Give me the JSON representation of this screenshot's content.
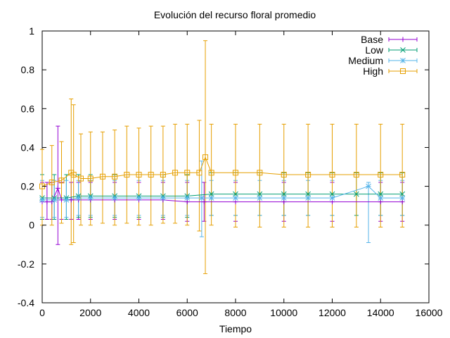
{
  "chart_data": {
    "type": "line",
    "title": "Evolución del recurso floral promedio",
    "xlabel": "Tiempo",
    "ylabel": "",
    "xlim": [
      0,
      16000
    ],
    "ylim": [
      -0.4,
      1
    ],
    "grid": false,
    "legend_position": "top-right",
    "x_ticks": [
      0,
      2000,
      4000,
      6000,
      8000,
      10000,
      12000,
      14000,
      16000
    ],
    "x_tick_labels": [
      "0",
      "2000",
      "4000",
      "6000",
      "8000",
      "10000",
      "12000",
      "14000",
      "16000"
    ],
    "y_ticks": [
      -0.4,
      -0.2,
      0,
      0.2,
      0.4,
      0.6,
      0.8,
      1
    ],
    "y_tick_labels": [
      "-0.4",
      "-0.2",
      "0",
      "0.2",
      "0.4",
      "0.6",
      "0.8",
      "1"
    ],
    "series": [
      {
        "name": "Base",
        "color": "#9400d3",
        "marker": "plus",
        "x": [
          0,
          200,
          400,
          650,
          800,
          1200,
          1500,
          2000,
          3000,
          4000,
          5000,
          6000,
          6700,
          8000,
          10000,
          12000,
          14000,
          14900
        ],
        "y": [
          0.12,
          0.12,
          0.12,
          0.19,
          0.13,
          0.13,
          0.13,
          0.13,
          0.13,
          0.13,
          0.13,
          0.12,
          0.12,
          0.12,
          0.12,
          0.12,
          0.12,
          0.12
        ],
        "err_low": [
          0.03,
          0.03,
          0.03,
          -0.1,
          0.03,
          0.03,
          0.03,
          0.03,
          0.03,
          0.03,
          0.03,
          0.02,
          0.02,
          0.02,
          0.02,
          0.02,
          0.02,
          0.02
        ],
        "err_high": [
          0.22,
          0.22,
          0.22,
          0.51,
          0.22,
          0.22,
          0.22,
          0.22,
          0.22,
          0.22,
          0.22,
          0.22,
          0.22,
          0.22,
          0.22,
          0.22,
          0.22,
          0.22
        ]
      },
      {
        "name": "Low",
        "color": "#009e73",
        "marker": "cross",
        "x": [
          0,
          500,
          1000,
          1500,
          2000,
          3000,
          4000,
          5000,
          6000,
          7000,
          8000,
          9000,
          10000,
          11000,
          12000,
          13000,
          14000,
          14900
        ],
        "y": [
          0.14,
          0.14,
          0.14,
          0.15,
          0.15,
          0.15,
          0.15,
          0.15,
          0.15,
          0.16,
          0.16,
          0.16,
          0.16,
          0.16,
          0.16,
          0.16,
          0.16,
          0.16
        ],
        "err_low": [
          0.03,
          0.03,
          0.03,
          0.04,
          0.04,
          0.04,
          0.04,
          0.04,
          0.04,
          0.05,
          0.05,
          0.05,
          0.05,
          0.05,
          0.05,
          0.05,
          0.05,
          0.05
        ],
        "err_high": [
          0.26,
          0.26,
          0.26,
          0.26,
          0.26,
          0.26,
          0.26,
          0.26,
          0.26,
          0.27,
          0.27,
          0.27,
          0.27,
          0.27,
          0.27,
          0.27,
          0.27,
          0.27
        ]
      },
      {
        "name": "Medium",
        "color": "#56b4e9",
        "marker": "star",
        "x": [
          0,
          500,
          1000,
          1500,
          2000,
          3000,
          4000,
          5000,
          6000,
          6600,
          7000,
          8000,
          9000,
          10000,
          11000,
          12000,
          13500,
          14000,
          14900
        ],
        "y": [
          0.13,
          0.13,
          0.13,
          0.14,
          0.14,
          0.14,
          0.14,
          0.14,
          0.14,
          0.14,
          0.14,
          0.14,
          0.14,
          0.14,
          0.14,
          0.14,
          0.2,
          0.14,
          0.14
        ],
        "err_low": [
          0.04,
          0.04,
          0.04,
          0.05,
          0.05,
          0.05,
          0.05,
          0.05,
          0.05,
          -0.06,
          0.05,
          0.05,
          0.05,
          0.05,
          0.05,
          0.05,
          -0.09,
          0.05,
          0.05
        ],
        "err_high": [
          0.23,
          0.23,
          0.23,
          0.23,
          0.23,
          0.23,
          0.23,
          0.23,
          0.23,
          0.33,
          0.23,
          0.23,
          0.23,
          0.23,
          0.23,
          0.23,
          0.22,
          0.23,
          0.23
        ]
      },
      {
        "name": "High",
        "color": "#e69f00",
        "marker": "square",
        "x": [
          0,
          400,
          800,
          1200,
          1300,
          1600,
          2000,
          2500,
          3000,
          3500,
          4000,
          4500,
          5000,
          5500,
          6000,
          6500,
          6750,
          7000,
          8000,
          9000,
          10000,
          11000,
          12000,
          13000,
          14000,
          14900
        ],
        "y": [
          0.2,
          0.22,
          0.23,
          0.27,
          0.26,
          0.24,
          0.24,
          0.25,
          0.25,
          0.26,
          0.26,
          0.26,
          0.26,
          0.27,
          0.27,
          0.27,
          0.35,
          0.27,
          0.27,
          0.27,
          0.26,
          0.26,
          0.26,
          0.26,
          0.26,
          0.26
        ],
        "err_low": [
          0.0,
          0.0,
          0.01,
          -0.1,
          -0.09,
          0.0,
          0.0,
          0.01,
          0.0,
          0.01,
          0.0,
          0.0,
          0.01,
          0.01,
          0.0,
          -0.03,
          -0.25,
          0.0,
          -0.01,
          -0.01,
          -0.01,
          -0.01,
          -0.01,
          -0.01,
          -0.01,
          -0.01
        ],
        "err_high": [
          0.39,
          0.41,
          0.43,
          0.65,
          0.62,
          0.47,
          0.48,
          0.48,
          0.49,
          0.51,
          0.5,
          0.51,
          0.51,
          0.52,
          0.52,
          0.54,
          0.95,
          0.52,
          0.52,
          0.52,
          0.52,
          0.52,
          0.52,
          0.52,
          0.52,
          0.52
        ]
      }
    ]
  }
}
